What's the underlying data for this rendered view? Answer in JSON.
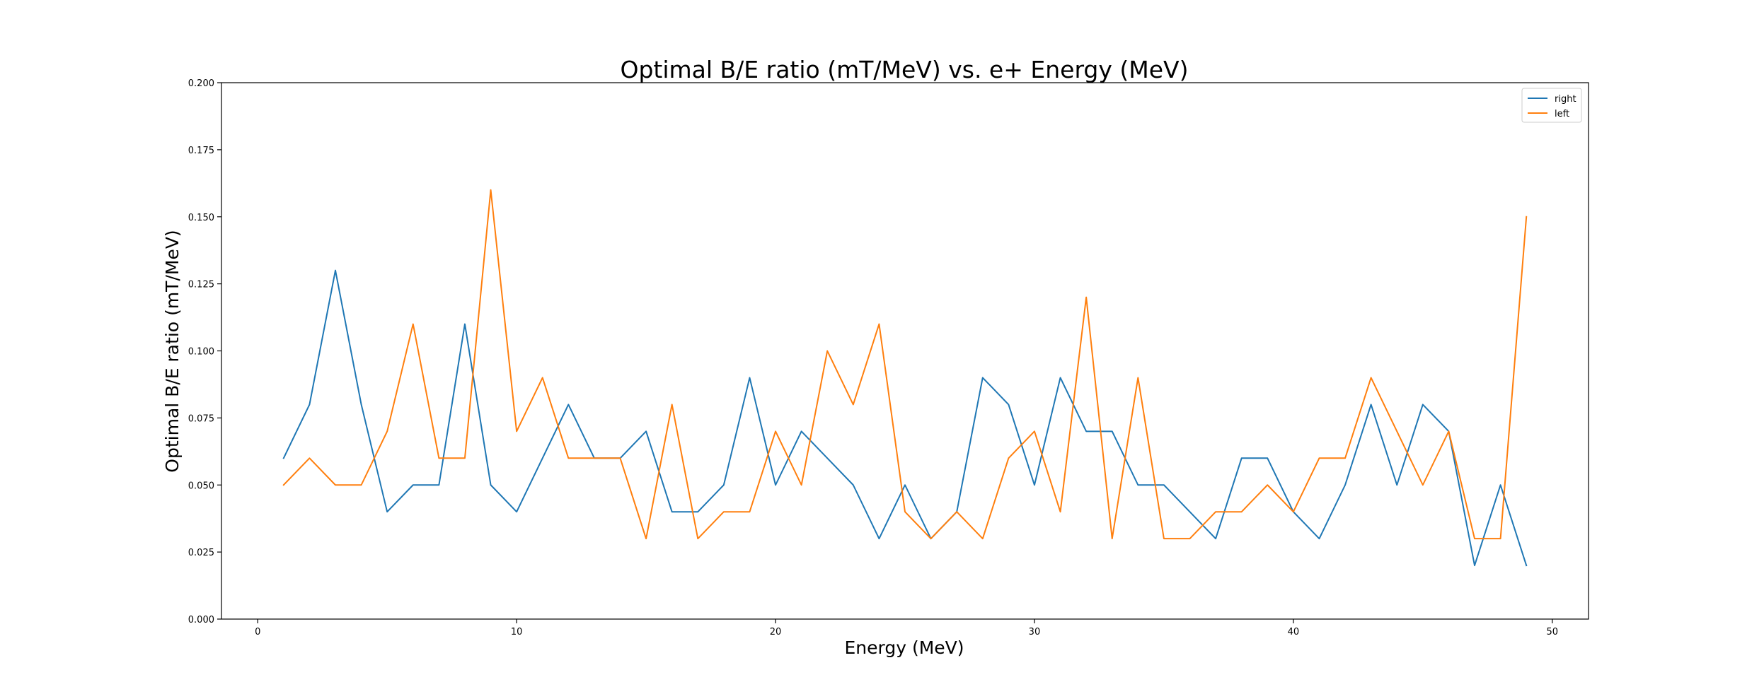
{
  "chart_data": {
    "type": "line",
    "title": "Optimal B/E ratio (mT/MeV) vs. e+ Energy (MeV)",
    "xlabel": "Energy (MeV)",
    "ylabel": "Optimal B/E ratio (mT/MeV)",
    "xlim": [
      -1.4,
      51.4
    ],
    "ylim": [
      0.0,
      0.2
    ],
    "xticks": [
      0,
      10,
      20,
      30,
      40,
      50
    ],
    "xtick_labels": [
      "0",
      "10",
      "20",
      "30",
      "40",
      "50"
    ],
    "yticks": [
      0.0,
      0.025,
      0.05,
      0.075,
      0.1,
      0.125,
      0.15,
      0.175,
      0.2
    ],
    "ytick_labels": [
      "0.000",
      "0.025",
      "0.050",
      "0.075",
      "0.100",
      "0.125",
      "0.150",
      "0.175",
      "0.200"
    ],
    "grid": false,
    "legend_position": "top-right",
    "x": [
      1,
      2,
      3,
      4,
      5,
      6,
      7,
      8,
      9,
      10,
      11,
      12,
      13,
      14,
      15,
      16,
      17,
      18,
      19,
      20,
      21,
      22,
      23,
      24,
      25,
      26,
      27,
      28,
      29,
      30,
      31,
      32,
      33,
      34,
      35,
      36,
      37,
      38,
      39,
      40,
      41,
      42,
      43,
      44,
      45,
      46,
      47,
      48,
      49
    ],
    "series": [
      {
        "name": "right",
        "color": "#1f77b4",
        "values": [
          0.06,
          0.08,
          0.13,
          0.08,
          0.04,
          0.05,
          0.05,
          0.11,
          0.05,
          0.04,
          0.06,
          0.08,
          0.06,
          0.06,
          0.07,
          0.04,
          0.04,
          0.05,
          0.09,
          0.05,
          0.07,
          0.06,
          0.05,
          0.03,
          0.05,
          0.03,
          0.04,
          0.09,
          0.08,
          0.05,
          0.09,
          0.07,
          0.07,
          0.05,
          0.05,
          0.04,
          0.03,
          0.06,
          0.06,
          0.04,
          0.03,
          0.05,
          0.08,
          0.05,
          0.08,
          0.07,
          0.02,
          0.05,
          0.02
        ]
      },
      {
        "name": "left",
        "color": "#ff7f0e",
        "values": [
          0.05,
          0.06,
          0.05,
          0.05,
          0.07,
          0.11,
          0.06,
          0.06,
          0.16,
          0.07,
          0.09,
          0.06,
          0.06,
          0.06,
          0.03,
          0.08,
          0.03,
          0.04,
          0.04,
          0.07,
          0.05,
          0.1,
          0.08,
          0.11,
          0.04,
          0.03,
          0.04,
          0.03,
          0.06,
          0.07,
          0.04,
          0.12,
          0.03,
          0.09,
          0.03,
          0.03,
          0.04,
          0.04,
          0.05,
          0.04,
          0.06,
          0.06,
          0.09,
          0.07,
          0.05,
          0.07,
          0.03,
          0.03,
          0.15
        ]
      }
    ]
  }
}
